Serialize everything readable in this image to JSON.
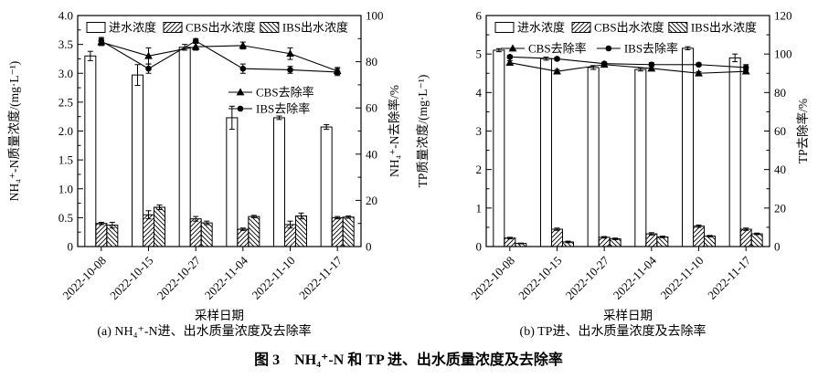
{
  "figure": {
    "title": "图 3　NH₄⁺-N 和 TP 进、出水质量浓度及去除率"
  },
  "colors": {
    "ink": "#000000",
    "background": "#ffffff"
  },
  "chart_data": [
    {
      "type": "bar+line",
      "caption": "(a) NH₄⁺-N进、出水质量浓度及去除率",
      "xlabel": "采样日期",
      "categories": [
        "2022-10-08",
        "2022-10-15",
        "2022-10-27",
        "2022-11-04",
        "2022-11-10",
        "2022-11-17"
      ],
      "axis_left": {
        "label": "NH₄⁺-N质量浓度/(mg·L⁻¹)",
        "min": 0,
        "max": 4,
        "major": 0.5,
        "minor": 0.25,
        "tick_labels": [
          "0",
          "0.5",
          "1.0",
          "1.5",
          "2.0",
          "2.5",
          "3.0",
          "3.5",
          "4.0"
        ]
      },
      "axis_right": {
        "label": "NH₄⁺-N去除率/%",
        "min": 0,
        "max": 100,
        "major": 20,
        "minor": 10,
        "tick_labels": [
          "0",
          "20",
          "40",
          "60",
          "80",
          "100"
        ]
      },
      "bar_series": [
        {
          "name": "进水浓度",
          "hatch": "none",
          "values": [
            3.3,
            2.97,
            3.45,
            2.23,
            2.23,
            2.07
          ],
          "errors": [
            0.08,
            0.18,
            0.05,
            0.2,
            0.03,
            0.04
          ]
        },
        {
          "name": "CBS出水浓度",
          "hatch": "forward",
          "values": [
            0.4,
            0.55,
            0.48,
            0.3,
            0.38,
            0.5
          ],
          "errors": [
            0.02,
            0.07,
            0.04,
            0.02,
            0.06,
            0.02
          ]
        },
        {
          "name": "IBS出水浓度",
          "hatch": "backward",
          "values": [
            0.37,
            0.68,
            0.41,
            0.52,
            0.53,
            0.51
          ],
          "errors": [
            0.05,
            0.04,
            0.03,
            0.02,
            0.05,
            0.02
          ]
        }
      ],
      "line_series": [
        {
          "name": "CBS去除率",
          "marker": "triangle",
          "values": [
            88.5,
            82.5,
            86.5,
            87.0,
            83.5,
            76.0
          ],
          "errors": [
            1.5,
            3.5,
            1.5,
            1.5,
            2.5,
            1.5
          ]
        },
        {
          "name": "IBS去除率",
          "marker": "circle",
          "values": [
            89.0,
            77.0,
            89.0,
            77.0,
            76.5,
            75.5
          ],
          "errors": [
            1.5,
            2.0,
            1.0,
            2.0,
            1.5,
            1.5
          ]
        }
      ],
      "legend": {
        "bars": "top-inside-row",
        "lines": "inside-middle-right"
      }
    },
    {
      "type": "bar+line",
      "caption": "(b) TP进、出水质量浓度及去除率",
      "xlabel": "采样日期",
      "categories": [
        "2022-10-08",
        "2022-10-15",
        "2022-10-27",
        "2022-11-04",
        "2022-11-10",
        "2022-11-17"
      ],
      "axis_left": {
        "label": "TP质量浓度/(mg·L⁻¹)",
        "min": 0,
        "max": 6,
        "major": 1,
        "minor": 0.5,
        "tick_labels": [
          "0",
          "1",
          "2",
          "3",
          "4",
          "5",
          "6"
        ]
      },
      "axis_right": {
        "label": "TP去除率/%",
        "min": 0,
        "max": 120,
        "major": 20,
        "minor": 10,
        "tick_labels": [
          "0",
          "20",
          "40",
          "60",
          "80",
          "100",
          "120"
        ]
      },
      "bar_series": [
        {
          "name": "进水浓度",
          "hatch": "none",
          "values": [
            5.1,
            4.88,
            4.65,
            4.6,
            5.15,
            4.9
          ],
          "errors": [
            0.04,
            0.04,
            0.05,
            0.04,
            0.04,
            0.1
          ]
        },
        {
          "name": "CBS出水浓度",
          "hatch": "forward",
          "values": [
            0.22,
            0.45,
            0.24,
            0.33,
            0.53,
            0.45
          ],
          "errors": [
            0.02,
            0.03,
            0.02,
            0.03,
            0.03,
            0.03
          ]
        },
        {
          "name": "IBS出水浓度",
          "hatch": "backward",
          "values": [
            0.08,
            0.12,
            0.2,
            0.25,
            0.27,
            0.33
          ],
          "errors": [
            0.01,
            0.02,
            0.02,
            0.02,
            0.02,
            0.02
          ]
        }
      ],
      "line_series": [
        {
          "name": "CBS去除率",
          "marker": "triangle",
          "values": [
            95.5,
            91.0,
            94.5,
            92.5,
            90.0,
            91.0
          ],
          "errors": [
            1.0,
            1.0,
            0.8,
            1.0,
            0.8,
            0.8
          ]
        },
        {
          "name": "IBS去除率",
          "marker": "circle",
          "values": [
            98.5,
            97.5,
            95.0,
            94.5,
            94.5,
            93.0
          ],
          "errors": [
            0.8,
            0.8,
            0.8,
            1.0,
            0.8,
            1.5
          ]
        }
      ],
      "legend": {
        "bars": "top-inside-row",
        "lines": "top-inside-row2"
      }
    }
  ]
}
